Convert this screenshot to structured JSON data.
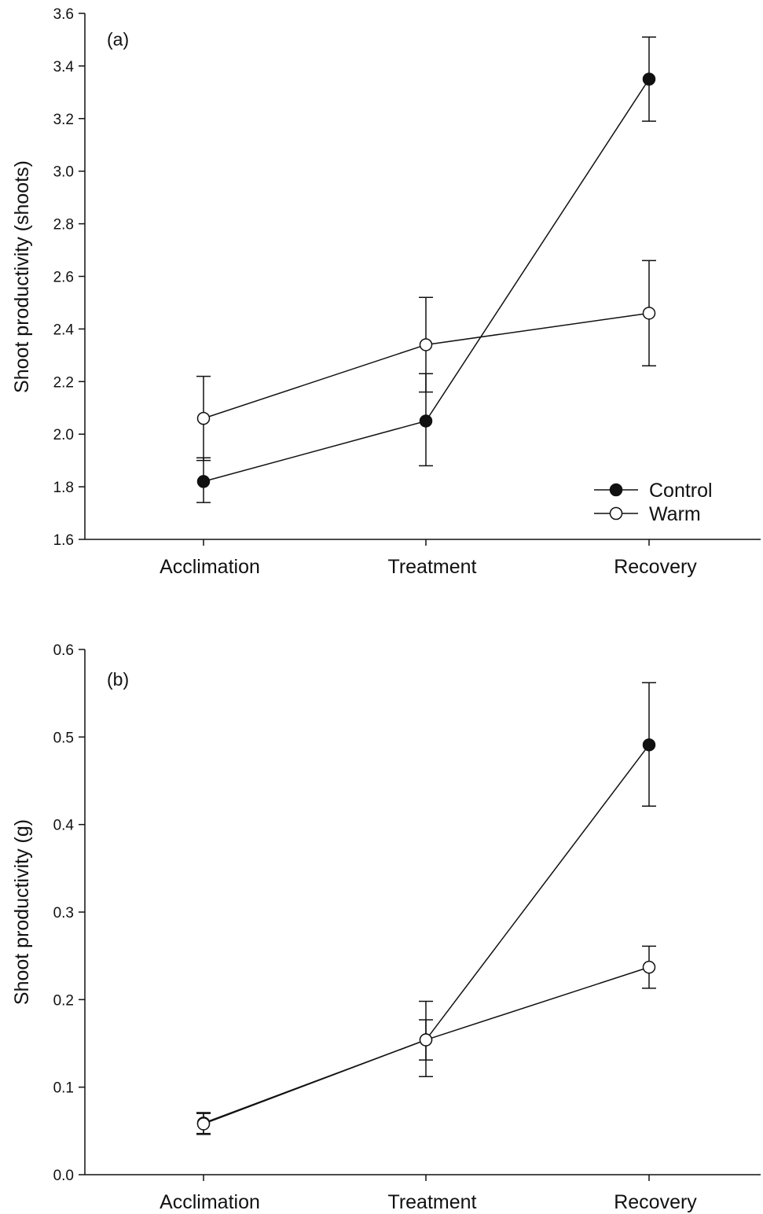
{
  "chart_data": [
    {
      "type": "line",
      "panel_label": "(a)",
      "categories": [
        "Acclimation",
        "Treatment",
        "Recovery"
      ],
      "ylabel": "Shoot productivity (shoots)",
      "ylim": [
        1.6,
        3.6
      ],
      "yticks": [
        "1.6",
        "1.8",
        "2.0",
        "2.2",
        "2.4",
        "2.6",
        "2.8",
        "3.0",
        "3.2",
        "3.4",
        "3.6"
      ],
      "grid": false,
      "legend_position": "bottom-right",
      "series": [
        {
          "name": "Control",
          "marker": "filled",
          "values": [
            1.82,
            2.05,
            3.35
          ],
          "err_low": [
            1.74,
            1.88,
            3.19
          ],
          "err_high": [
            1.91,
            2.23,
            3.51
          ]
        },
        {
          "name": "Warm",
          "marker": "open",
          "values": [
            2.06,
            2.34,
            2.46
          ],
          "err_low": [
            1.9,
            2.16,
            2.26
          ],
          "err_high": [
            2.22,
            2.52,
            2.66
          ]
        }
      ]
    },
    {
      "type": "line",
      "panel_label": "(b)",
      "categories": [
        "Acclimation",
        "Treatment",
        "Recovery"
      ],
      "ylabel": "Shoot productivity (g)",
      "ylim": [
        0.0,
        0.6
      ],
      "yticks": [
        "0.0",
        "0.1",
        "0.2",
        "0.3",
        "0.4",
        "0.5",
        "0.6"
      ],
      "grid": false,
      "series": [
        {
          "marker": "filled",
          "values": [
            0.059,
            0.154,
            0.491
          ],
          "err_low": [
            0.047,
            0.131,
            0.421
          ],
          "err_high": [
            0.071,
            0.177,
            0.562
          ]
        },
        {
          "marker": "open",
          "values": [
            0.058,
            0.154,
            0.237
          ],
          "err_low": [
            0.046,
            0.112,
            0.213
          ],
          "err_high": [
            0.07,
            0.198,
            0.261
          ]
        }
      ]
    }
  ]
}
